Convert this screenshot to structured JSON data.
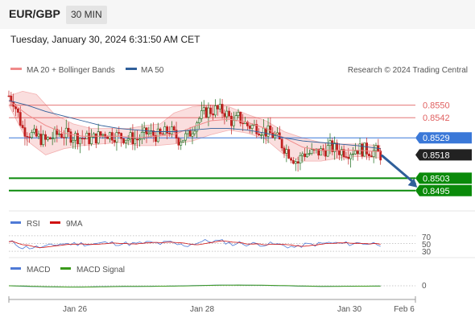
{
  "header": {
    "symbol": "EUR/GBP",
    "timeframe": "30 MIN"
  },
  "timestamp": "Tuesday, January 30, 2024 6:31:50 AM CET",
  "credit": "Research © 2024 Trading Central",
  "legend": {
    "main": [
      {
        "label": "MA 20 + Bollinger Bands",
        "color": "#f08a8a"
      },
      {
        "label": "MA 50",
        "color": "#2f5f9a"
      }
    ],
    "rsi": [
      {
        "label": "RSI",
        "color": "#4f7ad6"
      },
      {
        "label": "9MA",
        "color": "#d01010"
      }
    ],
    "macd": [
      {
        "label": "MACD",
        "color": "#4f7ad6"
      },
      {
        "label": "MACD Signal",
        "color": "#3a9a1a"
      }
    ]
  },
  "colors": {
    "resistance": "#e06060",
    "pivot": "#3a78d8",
    "support": "#0a8a0a",
    "price": "#222222",
    "arrow": "#2f5f9a",
    "bull": "#1a6a1a",
    "bear": "#c02020"
  },
  "chart_data": {
    "type": "candlestick",
    "ylim": [
      0.8484,
      0.8568
    ],
    "levels": [
      {
        "value": 0.855,
        "label": "0.8550",
        "type": "resistance"
      },
      {
        "value": 0.8542,
        "label": "0.8542",
        "type": "resistance"
      },
      {
        "value": 0.8529,
        "label": "0.8529",
        "type": "pivot"
      },
      {
        "value": 0.8518,
        "label": "0.8518",
        "type": "last"
      },
      {
        "value": 0.8503,
        "label": "0.8503",
        "type": "support"
      },
      {
        "value": 0.8495,
        "label": "0.8495",
        "type": "support"
      }
    ],
    "x_ticks": [
      "Jan 26",
      "Jan 28",
      "Jan 30",
      "Feb 6"
    ],
    "price_path": [
      [
        0.8556,
        0
      ],
      [
        0.8553,
        2
      ],
      [
        0.8535,
        6
      ],
      [
        0.8531,
        10
      ],
      [
        0.8527,
        16
      ],
      [
        0.8532,
        22
      ],
      [
        0.853,
        28
      ],
      [
        0.8528,
        36
      ],
      [
        0.8532,
        42
      ],
      [
        0.853,
        48
      ],
      [
        0.8528,
        56
      ],
      [
        0.8532,
        60
      ],
      [
        0.853,
        66
      ],
      [
        0.8534,
        70
      ],
      [
        0.8528,
        74
      ],
      [
        0.853,
        78
      ],
      [
        0.854,
        82
      ],
      [
        0.8546,
        86
      ],
      [
        0.8547,
        90
      ],
      [
        0.8546,
        94
      ],
      [
        0.8538,
        98
      ],
      [
        0.8542,
        100
      ],
      [
        0.8537,
        104
      ],
      [
        0.8536,
        108
      ],
      [
        0.8533,
        112
      ],
      [
        0.853,
        116
      ],
      [
        0.8523,
        120
      ],
      [
        0.8516,
        124
      ],
      [
        0.8513,
        126
      ],
      [
        0.8519,
        128
      ],
      [
        0.8519,
        132
      ],
      [
        0.852,
        136
      ],
      [
        0.8523,
        140
      ],
      [
        0.8521,
        144
      ],
      [
        0.852,
        148
      ],
      [
        0.8522,
        152
      ],
      [
        0.8521,
        156
      ],
      [
        0.852,
        160
      ],
      [
        0.8518,
        162
      ]
    ],
    "ma20": [
      [
        0.8553,
        0
      ],
      [
        0.8544,
        8
      ],
      [
        0.8537,
        16
      ],
      [
        0.8532,
        24
      ],
      [
        0.853,
        32
      ],
      [
        0.853,
        40
      ],
      [
        0.853,
        48
      ],
      [
        0.8529,
        56
      ],
      [
        0.853,
        64
      ],
      [
        0.8531,
        72
      ],
      [
        0.8536,
        80
      ],
      [
        0.854,
        88
      ],
      [
        0.8541,
        96
      ],
      [
        0.8539,
        104
      ],
      [
        0.8535,
        112
      ],
      [
        0.8529,
        120
      ],
      [
        0.8523,
        128
      ],
      [
        0.8521,
        136
      ],
      [
        0.8521,
        144
      ],
      [
        0.8521,
        152
      ],
      [
        0.852,
        162
      ]
    ],
    "bb_upper": [
      [
        0.8556,
        0
      ],
      [
        0.8559,
        6
      ],
      [
        0.8557,
        12
      ],
      [
        0.8544,
        20
      ],
      [
        0.8538,
        28
      ],
      [
        0.8535,
        36
      ],
      [
        0.8535,
        44
      ],
      [
        0.8535,
        52
      ],
      [
        0.8537,
        60
      ],
      [
        0.8538,
        66
      ],
      [
        0.8545,
        72
      ],
      [
        0.8549,
        80
      ],
      [
        0.855,
        88
      ],
      [
        0.8549,
        96
      ],
      [
        0.8544,
        104
      ],
      [
        0.854,
        112
      ],
      [
        0.8533,
        120
      ],
      [
        0.8529,
        128
      ],
      [
        0.8526,
        136
      ],
      [
        0.8525,
        144
      ],
      [
        0.8525,
        152
      ],
      [
        0.8524,
        162
      ]
    ],
    "bb_lower": [
      [
        0.855,
        0
      ],
      [
        0.8527,
        8
      ],
      [
        0.8518,
        16
      ],
      [
        0.8522,
        24
      ],
      [
        0.8524,
        32
      ],
      [
        0.8525,
        40
      ],
      [
        0.8526,
        48
      ],
      [
        0.8524,
        56
      ],
      [
        0.8524,
        64
      ],
      [
        0.8525,
        72
      ],
      [
        0.8527,
        80
      ],
      [
        0.8531,
        88
      ],
      [
        0.8534,
        96
      ],
      [
        0.8532,
        104
      ],
      [
        0.8528,
        112
      ],
      [
        0.8518,
        120
      ],
      [
        0.8514,
        128
      ],
      [
        0.8514,
        136
      ],
      [
        0.8516,
        144
      ],
      [
        0.8517,
        152
      ],
      [
        0.8516,
        162
      ]
    ],
    "ma50": [
      [
        0.8553,
        0
      ],
      [
        0.855,
        8
      ],
      [
        0.8546,
        16
      ],
      [
        0.8543,
        24
      ],
      [
        0.854,
        32
      ],
      [
        0.8537,
        40
      ],
      [
        0.8535,
        48
      ],
      [
        0.8534,
        56
      ],
      [
        0.8533,
        64
      ],
      [
        0.8533,
        72
      ],
      [
        0.8534,
        80
      ],
      [
        0.8535,
        88
      ],
      [
        0.8535,
        96
      ],
      [
        0.8534,
        104
      ],
      [
        0.8532,
        112
      ],
      [
        0.8529,
        120
      ],
      [
        0.8527,
        128
      ],
      [
        0.8526,
        136
      ],
      [
        0.8525,
        144
      ],
      [
        0.8524,
        152
      ],
      [
        0.8522,
        162
      ]
    ],
    "projection": {
      "from": [
        0.8518,
        162
      ],
      "to": [
        0.8497,
        178
      ]
    },
    "rsi": {
      "ylim": [
        22,
        78
      ],
      "ticks": [
        70,
        50,
        30
      ],
      "tick_labels": [
        "70",
        "50",
        "30"
      ]
    },
    "macd": {
      "ticks": [
        0
      ],
      "tick_labels": [
        "0"
      ]
    }
  }
}
